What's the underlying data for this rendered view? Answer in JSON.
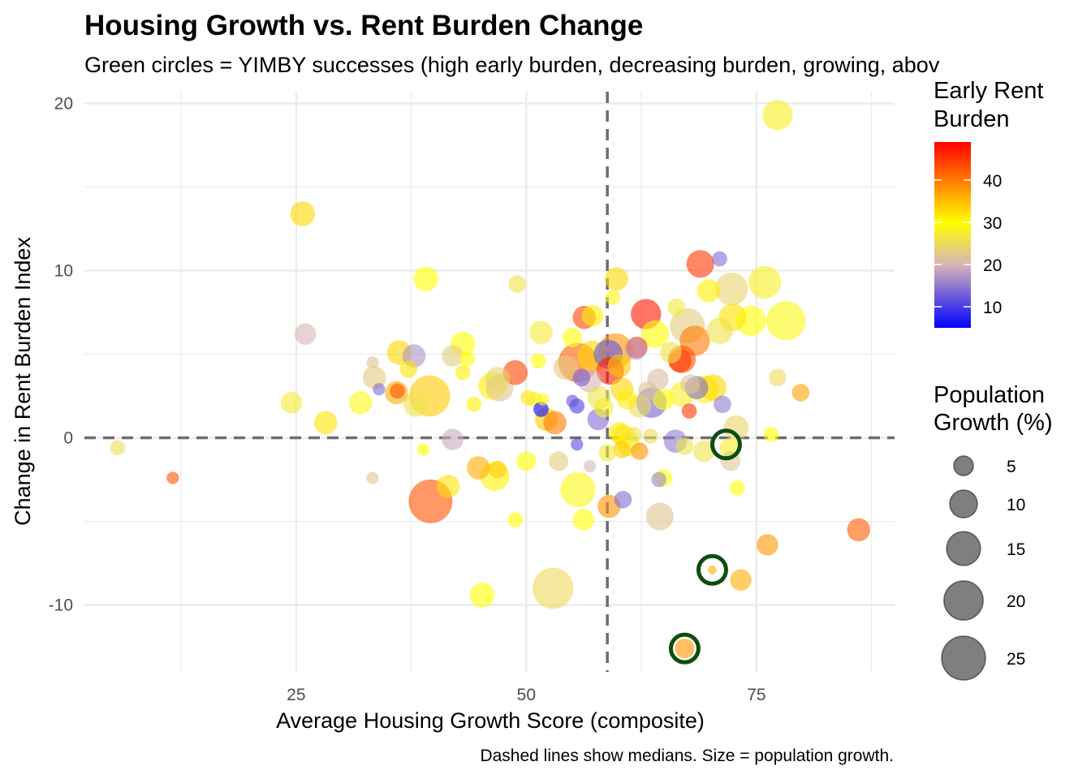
{
  "chart_data": {
    "type": "scatter",
    "title": "Housing Growth vs. Rent Burden Change",
    "subtitle": "Green circles = YIMBY successes (high early burden, decreasing burden, growing, abov",
    "xlabel": "Average Housing Growth Score (composite)",
    "ylabel": "Change in Rent Burden Index",
    "caption": "Dashed lines show medians. Size = population growth.",
    "xlim": [
      2,
      90
    ],
    "ylim": [
      -14,
      20.7
    ],
    "x_ticks": [
      25,
      50,
      75
    ],
    "y_ticks": [
      -10,
      0,
      10,
      20
    ],
    "x_tick_labels": [
      "25",
      "50",
      "75"
    ],
    "y_tick_labels": [
      "-10",
      "0",
      "10",
      "20"
    ],
    "median_x": 58.8,
    "median_y": 0,
    "grid": true,
    "color_legend": {
      "title_lines": [
        "Early Rent",
        "Burden"
      ],
      "min": 5,
      "max": 49,
      "ticks": [
        10,
        20,
        30,
        40
      ],
      "tick_labels": [
        "10",
        "20",
        "30",
        "40"
      ],
      "colors": [
        "#0000ff",
        "#d8b6b6",
        "#ffff00",
        "#ff0000"
      ],
      "stops": [
        5,
        20,
        30,
        49
      ],
      "placement": "right"
    },
    "size_legend": {
      "title_lines": [
        "Population",
        "Growth (%)"
      ],
      "values": [
        5,
        10,
        15,
        20,
        25
      ],
      "labels": [
        "5",
        "10",
        "15",
        "20",
        "25"
      ],
      "placement": "right"
    },
    "highlight_color": "#0d4d0d",
    "highlights": [
      {
        "x": 71.7,
        "y": -0.4
      },
      {
        "x": 70.2,
        "y": -7.9
      },
      {
        "x": 67.2,
        "y": -12.6
      }
    ],
    "points": [
      {
        "x": 77.3,
        "y": 19.3,
        "burden": 28,
        "pop": 12
      },
      {
        "x": 25.7,
        "y": 13.4,
        "burden": 33,
        "pop": 8
      },
      {
        "x": 68.9,
        "y": 10.4,
        "burden": 45,
        "pop": 10
      },
      {
        "x": 71.0,
        "y": 10.7,
        "burden": 14,
        "pop": 3
      },
      {
        "x": 72.3,
        "y": 8.9,
        "burden": 24,
        "pop": 14
      },
      {
        "x": 75.9,
        "y": 9.3,
        "burden": 28,
        "pop": 14
      },
      {
        "x": 78.2,
        "y": 7.0,
        "burden": 29,
        "pop": 20
      },
      {
        "x": 74.4,
        "y": 7.0,
        "burden": 30,
        "pop": 12
      },
      {
        "x": 72.4,
        "y": 7.2,
        "burden": 32,
        "pop": 10
      },
      {
        "x": 69.8,
        "y": 8.8,
        "burden": 31,
        "pop": 7
      },
      {
        "x": 59.8,
        "y": 9.5,
        "burden": 33,
        "pop": 7
      },
      {
        "x": 59.4,
        "y": 8.4,
        "burden": 29,
        "pop": 3
      },
      {
        "x": 49.0,
        "y": 9.2,
        "burden": 26,
        "pop": 4
      },
      {
        "x": 39.1,
        "y": 9.5,
        "burden": 30,
        "pop": 8
      },
      {
        "x": 56.3,
        "y": 7.2,
        "burden": 44,
        "pop": 7
      },
      {
        "x": 57.2,
        "y": 7.3,
        "burden": 31,
        "pop": 6
      },
      {
        "x": 63.0,
        "y": 7.4,
        "burden": 47,
        "pop": 12
      },
      {
        "x": 66.3,
        "y": 7.8,
        "burden": 27,
        "pop": 4
      },
      {
        "x": 67.5,
        "y": 6.7,
        "burden": 23,
        "pop": 16
      },
      {
        "x": 68.3,
        "y": 5.8,
        "burden": 40,
        "pop": 12
      },
      {
        "x": 66.9,
        "y": 4.7,
        "burden": 43,
        "pop": 10
      },
      {
        "x": 64.0,
        "y": 6.2,
        "burden": 30,
        "pop": 10
      },
      {
        "x": 51.6,
        "y": 6.3,
        "burden": 27,
        "pop": 7
      },
      {
        "x": 55.0,
        "y": 6.0,
        "burden": 30,
        "pop": 5
      },
      {
        "x": 55.6,
        "y": 4.5,
        "burden": 42,
        "pop": 20
      },
      {
        "x": 57.2,
        "y": 4.9,
        "burden": 33,
        "pop": 12
      },
      {
        "x": 59.7,
        "y": 5.2,
        "burden": 38,
        "pop": 16
      },
      {
        "x": 59.1,
        "y": 4.0,
        "burden": 47,
        "pop": 10
      },
      {
        "x": 58.9,
        "y": 5.0,
        "burden": 12,
        "pop": 11
      },
      {
        "x": 60.1,
        "y": 4.3,
        "burden": 34,
        "pop": 7
      },
      {
        "x": 62.0,
        "y": 5.4,
        "burden": 46,
        "pop": 6
      },
      {
        "x": 61.9,
        "y": 5.3,
        "burden": 18,
        "pop": 6
      },
      {
        "x": 65.7,
        "y": 5.1,
        "burden": 26,
        "pop": 6
      },
      {
        "x": 66.7,
        "y": 4.6,
        "burden": 45,
        "pop": 7
      },
      {
        "x": 71.0,
        "y": 6.4,
        "burden": 26,
        "pop": 9
      },
      {
        "x": 43.1,
        "y": 5.6,
        "burden": 30,
        "pop": 8
      },
      {
        "x": 36.2,
        "y": 5.1,
        "burden": 33,
        "pop": 8
      },
      {
        "x": 37.8,
        "y": 4.9,
        "burden": 17,
        "pop": 7
      },
      {
        "x": 42.0,
        "y": 4.9,
        "burden": 23,
        "pop": 6
      },
      {
        "x": 43.6,
        "y": 4.7,
        "burden": 30,
        "pop": 3
      },
      {
        "x": 26.0,
        "y": 6.2,
        "burden": 20,
        "pop": 6
      },
      {
        "x": 33.3,
        "y": 4.5,
        "burden": 22,
        "pop": 2
      },
      {
        "x": 37.2,
        "y": 4.1,
        "burden": 32,
        "pop": 4
      },
      {
        "x": 43.1,
        "y": 3.9,
        "burden": 31,
        "pop": 3
      },
      {
        "x": 48.8,
        "y": 3.9,
        "burden": 44,
        "pop": 8
      },
      {
        "x": 51.3,
        "y": 4.6,
        "burden": 30,
        "pop": 3
      },
      {
        "x": 54.3,
        "y": 4.2,
        "burden": 23,
        "pop": 8
      },
      {
        "x": 33.5,
        "y": 3.6,
        "burden": 23,
        "pop": 7
      },
      {
        "x": 34.0,
        "y": 2.9,
        "burden": 14,
        "pop": 2
      },
      {
        "x": 35.9,
        "y": 2.7,
        "burden": 36,
        "pop": 7
      },
      {
        "x": 36.0,
        "y": 2.8,
        "burden": 43,
        "pop": 3
      },
      {
        "x": 39.5,
        "y": 2.5,
        "burden": 34,
        "pop": 22
      },
      {
        "x": 38.0,
        "y": 2.0,
        "burden": 26,
        "pop": 8
      },
      {
        "x": 46.3,
        "y": 3.1,
        "burden": 31,
        "pop": 10
      },
      {
        "x": 46.9,
        "y": 3.5,
        "burden": 24,
        "pop": 8
      },
      {
        "x": 47.1,
        "y": 3.0,
        "burden": 22,
        "pop": 10
      },
      {
        "x": 44.3,
        "y": 2.0,
        "burden": 31,
        "pop": 3
      },
      {
        "x": 32.0,
        "y": 2.1,
        "burden": 29,
        "pop": 7
      },
      {
        "x": 24.5,
        "y": 2.1,
        "burden": 27,
        "pop": 6
      },
      {
        "x": 28.2,
        "y": 0.9,
        "burden": 32,
        "pop": 7
      },
      {
        "x": 50.2,
        "y": 2.4,
        "burden": 32,
        "pop": 3
      },
      {
        "x": 50.9,
        "y": 2.3,
        "burden": 28,
        "pop": 3
      },
      {
        "x": 51.8,
        "y": 2.3,
        "burden": 30,
        "pop": 2
      },
      {
        "x": 51.6,
        "y": 1.7,
        "burden": 5,
        "pop": 3
      },
      {
        "x": 52.2,
        "y": 1.1,
        "burden": 34,
        "pop": 7
      },
      {
        "x": 53.1,
        "y": 0.9,
        "burden": 40,
        "pop": 7
      },
      {
        "x": 55.0,
        "y": 2.2,
        "burden": 12,
        "pop": 2
      },
      {
        "x": 55.5,
        "y": 1.9,
        "burden": 10,
        "pop": 3
      },
      {
        "x": 56.0,
        "y": 3.6,
        "burden": 13,
        "pop": 4
      },
      {
        "x": 56.9,
        "y": 3.4,
        "burden": 20,
        "pop": 7
      },
      {
        "x": 57.9,
        "y": 2.4,
        "burden": 26,
        "pop": 7
      },
      {
        "x": 57.8,
        "y": 1.1,
        "burden": 14,
        "pop": 6
      },
      {
        "x": 58.4,
        "y": 1.8,
        "burden": 28,
        "pop": 5
      },
      {
        "x": 60.4,
        "y": 2.9,
        "burden": 33,
        "pop": 7
      },
      {
        "x": 60.9,
        "y": 2.3,
        "burden": 31,
        "pop": 5
      },
      {
        "x": 62.3,
        "y": 1.9,
        "burden": 25,
        "pop": 7
      },
      {
        "x": 63.2,
        "y": 2.8,
        "burden": 22,
        "pop": 5
      },
      {
        "x": 63.6,
        "y": 2.1,
        "burden": 13,
        "pop": 12
      },
      {
        "x": 64.3,
        "y": 3.5,
        "burden": 21,
        "pop": 6
      },
      {
        "x": 64.9,
        "y": 2.3,
        "burden": 30,
        "pop": 6
      },
      {
        "x": 66.9,
        "y": 2.6,
        "burden": 28,
        "pop": 8
      },
      {
        "x": 67.8,
        "y": 3.2,
        "burden": 22,
        "pop": 5
      },
      {
        "x": 68.5,
        "y": 3.0,
        "burden": 14,
        "pop": 7
      },
      {
        "x": 69.4,
        "y": 2.9,
        "burden": 31,
        "pop": 10
      },
      {
        "x": 70.3,
        "y": 3.0,
        "burden": 33,
        "pop": 9
      },
      {
        "x": 71.3,
        "y": 2.0,
        "burden": 15,
        "pop": 4
      },
      {
        "x": 67.7,
        "y": 1.6,
        "burden": 45,
        "pop": 3
      },
      {
        "x": 60.1,
        "y": 0.3,
        "burden": 32,
        "pop": 6
      },
      {
        "x": 60.6,
        "y": 0.1,
        "burden": 31,
        "pop": 7
      },
      {
        "x": 61.1,
        "y": -0.4,
        "burden": 28,
        "pop": 7
      },
      {
        "x": 60.4,
        "y": -0.7,
        "burden": 34,
        "pop": 4
      },
      {
        "x": 61.7,
        "y": 0.2,
        "burden": 26,
        "pop": 3
      },
      {
        "x": 62.3,
        "y": -0.8,
        "burden": 38,
        "pop": 4
      },
      {
        "x": 58.8,
        "y": -0.9,
        "burden": 27,
        "pop": 4
      },
      {
        "x": 63.5,
        "y": 0.1,
        "burden": 25,
        "pop": 3
      },
      {
        "x": 66.2,
        "y": -0.2,
        "burden": 15,
        "pop": 7
      },
      {
        "x": 67.2,
        "y": -0.5,
        "burden": 26,
        "pop": 4
      },
      {
        "x": 69.3,
        "y": -0.8,
        "burden": 26,
        "pop": 6
      },
      {
        "x": 72.8,
        "y": 0.6,
        "burden": 24,
        "pop": 8
      },
      {
        "x": 72.1,
        "y": -0.6,
        "burden": 28,
        "pop": 5
      },
      {
        "x": 72.2,
        "y": -1.4,
        "burden": 22,
        "pop": 5
      },
      {
        "x": 76.6,
        "y": 0.2,
        "burden": 30,
        "pop": 3
      },
      {
        "x": 77.3,
        "y": 3.6,
        "burden": 25,
        "pop": 4
      },
      {
        "x": 79.8,
        "y": 2.7,
        "burden": 37,
        "pop": 4
      },
      {
        "x": 5.6,
        "y": -0.6,
        "burden": 25,
        "pop": 3
      },
      {
        "x": 11.6,
        "y": -2.4,
        "burden": 43,
        "pop": 2
      },
      {
        "x": 33.3,
        "y": -2.4,
        "burden": 22,
        "pop": 2
      },
      {
        "x": 38.8,
        "y": -0.7,
        "burden": 30,
        "pop": 2
      },
      {
        "x": 42.0,
        "y": -0.1,
        "burden": 19,
        "pop": 6
      },
      {
        "x": 41.5,
        "y": -2.9,
        "burden": 32,
        "pop": 7
      },
      {
        "x": 39.6,
        "y": -3.8,
        "burden": 43,
        "pop": 25
      },
      {
        "x": 44.8,
        "y": -1.8,
        "burden": 36,
        "pop": 7
      },
      {
        "x": 46.9,
        "y": -1.9,
        "burden": 34,
        "pop": 4
      },
      {
        "x": 46.6,
        "y": -2.3,
        "burden": 31,
        "pop": 11
      },
      {
        "x": 50.0,
        "y": -1.4,
        "burden": 30,
        "pop": 5
      },
      {
        "x": 48.8,
        "y": -4.9,
        "burden": 30,
        "pop": 3
      },
      {
        "x": 53.5,
        "y": -1.4,
        "burden": 23,
        "pop": 5
      },
      {
        "x": 55.5,
        "y": -0.4,
        "burden": 11,
        "pop": 2
      },
      {
        "x": 56.9,
        "y": -1.7,
        "burden": 20,
        "pop": 2
      },
      {
        "x": 55.6,
        "y": -3.1,
        "burden": 29,
        "pop": 16
      },
      {
        "x": 56.2,
        "y": -4.9,
        "burden": 30,
        "pop": 6
      },
      {
        "x": 59.0,
        "y": -4.1,
        "burden": 38,
        "pop": 7
      },
      {
        "x": 60.5,
        "y": -3.7,
        "burden": 14,
        "pop": 4
      },
      {
        "x": 64.4,
        "y": -2.5,
        "burden": 16,
        "pop": 3
      },
      {
        "x": 64.9,
        "y": -2.4,
        "burden": 30,
        "pop": 4
      },
      {
        "x": 64.5,
        "y": -4.7,
        "burden": 22,
        "pop": 10
      },
      {
        "x": 72.9,
        "y": -3.0,
        "burden": 30,
        "pop": 3
      },
      {
        "x": 76.2,
        "y": -6.4,
        "burden": 38,
        "pop": 6
      },
      {
        "x": 73.3,
        "y": -8.5,
        "burden": 36,
        "pop": 6
      },
      {
        "x": 52.9,
        "y": -9.0,
        "burden": 25,
        "pop": 22
      },
      {
        "x": 45.2,
        "y": -9.4,
        "burden": 30,
        "pop": 8
      },
      {
        "x": 86.1,
        "y": -5.5,
        "burden": 42,
        "pop": 7
      },
      {
        "x": 70.2,
        "y": -7.9,
        "burden": 36,
        "pop": 1
      },
      {
        "x": 67.2,
        "y": -12.6,
        "burden": 38,
        "pop": 5
      }
    ]
  }
}
